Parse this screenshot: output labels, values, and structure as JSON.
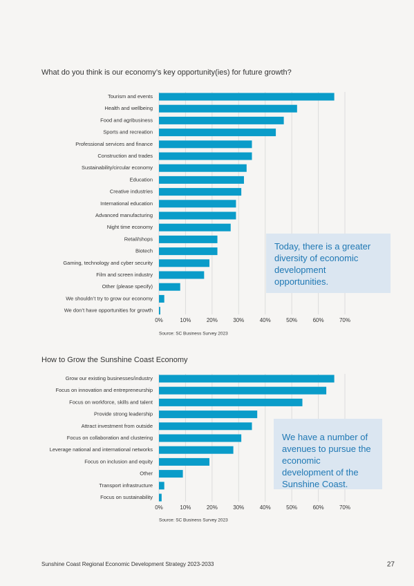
{
  "chart_data": [
    {
      "type": "bar",
      "orientation": "horizontal",
      "title": "What do you think is our economy’s key opportunity(ies) for future growth?",
      "categories": [
        "Tourism and events",
        "Health and wellbeing",
        "Food and agribusiness",
        "Sports and recreation",
        "Professional services and finance",
        "Construction and trades",
        "Sustainability/circular economy",
        "Education",
        "Creative industries",
        "International education",
        "Advanced manufacturing",
        "Night time economy",
        "Retail/shops",
        "Biotech",
        "Gaming, technology and cyber security",
        "Film and screen industry",
        "Other (please specify)",
        "We shouldn’t try to grow our economy",
        "We don’t have opportunities for growth"
      ],
      "values": [
        66,
        52,
        47,
        44,
        35,
        35,
        33,
        32,
        31,
        29,
        29,
        27,
        22,
        22,
        19,
        17,
        8,
        2,
        0.5
      ],
      "color": "#0a9cc9",
      "xlim": [
        0,
        70
      ],
      "xticks": [
        {
          "value": 0,
          "label": "0%"
        },
        {
          "value": 10,
          "label": "10%"
        },
        {
          "value": 20,
          "label": "20%"
        },
        {
          "value": 30,
          "label": "30%"
        },
        {
          "value": 40,
          "label": "40%"
        },
        {
          "value": 50,
          "label": "50%"
        },
        {
          "value": 60,
          "label": "60%"
        },
        {
          "value": 70,
          "label": "70%"
        }
      ],
      "grid": true,
      "source": "Source: SC Business Survey 2023",
      "annotation": "Today, there is a greater diversity of economic development opportunities."
    },
    {
      "type": "bar",
      "orientation": "horizontal",
      "title": "How to Grow the Sunshine Coast Economy",
      "categories": [
        "Grow our existing businesses/industry",
        "Focus on innovation and entrepreneurship",
        "Focus on workforce, skills and talent",
        "Provide strong leadership",
        "Attract investment from outside",
        "Focus on collaboration and clustering",
        "Leverage national and international networks",
        "Focus on inclusion and equity",
        "Other",
        "Transport infrastructure",
        "Focus on sustainability"
      ],
      "values": [
        66,
        63,
        54,
        37,
        35,
        31,
        28,
        19,
        9,
        2,
        1
      ],
      "color": "#0a9cc9",
      "xlim": [
        0,
        70
      ],
      "xticks": [
        {
          "value": 0,
          "label": "0%"
        },
        {
          "value": 10,
          "label": "10%"
        },
        {
          "value": 20,
          "label": "20%"
        },
        {
          "value": 30,
          "label": "30%"
        },
        {
          "value": 40,
          "label": "40%"
        },
        {
          "value": 50,
          "label": "50%"
        },
        {
          "value": 60,
          "label": "60%"
        },
        {
          "value": 70,
          "label": "70%"
        }
      ],
      "grid": true,
      "source": "Source: SC Business Survey 2023",
      "annotation": "We have a number of avenues to pursue the economic development of the Sunshine Coast."
    }
  ],
  "footer": {
    "text": "Sunshine Coast Regional Economic Development Strategy 2023-2033",
    "page_number": "27"
  }
}
